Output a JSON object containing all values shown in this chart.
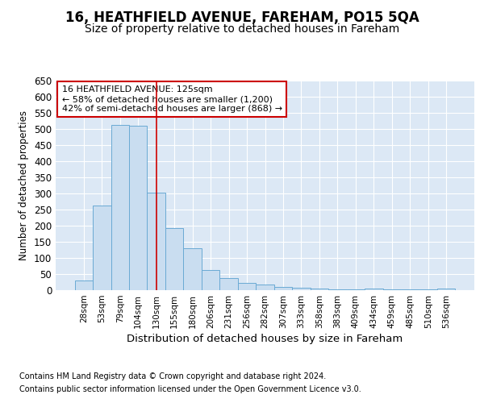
{
  "title1": "16, HEATHFIELD AVENUE, FAREHAM, PO15 5QA",
  "title2": "Size of property relative to detached houses in Fareham",
  "xlabel": "Distribution of detached houses by size in Fareham",
  "ylabel": "Number of detached properties",
  "footnote1": "Contains HM Land Registry data © Crown copyright and database right 2024.",
  "footnote2": "Contains public sector information licensed under the Open Government Licence v3.0.",
  "categories": [
    "28sqm",
    "53sqm",
    "79sqm",
    "104sqm",
    "130sqm",
    "155sqm",
    "180sqm",
    "206sqm",
    "231sqm",
    "256sqm",
    "282sqm",
    "307sqm",
    "333sqm",
    "358sqm",
    "383sqm",
    "409sqm",
    "434sqm",
    "459sqm",
    "485sqm",
    "510sqm",
    "536sqm"
  ],
  "values": [
    30,
    263,
    512,
    510,
    303,
    193,
    130,
    62,
    38,
    22,
    18,
    11,
    8,
    4,
    3,
    2,
    4,
    3,
    3,
    2,
    4
  ],
  "bar_color": "#c9ddf0",
  "bar_edge_color": "#6aaad4",
  "bar_linewidth": 0.7,
  "vline_x": 4.0,
  "vline_color": "#cc0000",
  "annotation_text": "16 HEATHFIELD AVENUE: 125sqm\n← 58% of detached houses are smaller (1,200)\n42% of semi-detached houses are larger (868) →",
  "annotation_box_facecolor": "white",
  "annotation_box_edgecolor": "#cc0000",
  "annotation_fontsize": 8.0,
  "ylim": [
    0,
    650
  ],
  "yticks": [
    0,
    50,
    100,
    150,
    200,
    250,
    300,
    350,
    400,
    450,
    500,
    550,
    600,
    650
  ],
  "fig_background": "white",
  "axes_background": "#dce8f5",
  "grid_color": "white",
  "title1_fontsize": 12,
  "title2_fontsize": 10,
  "xlabel_fontsize": 9.5,
  "ylabel_fontsize": 8.5,
  "footnote_fontsize": 7.0
}
